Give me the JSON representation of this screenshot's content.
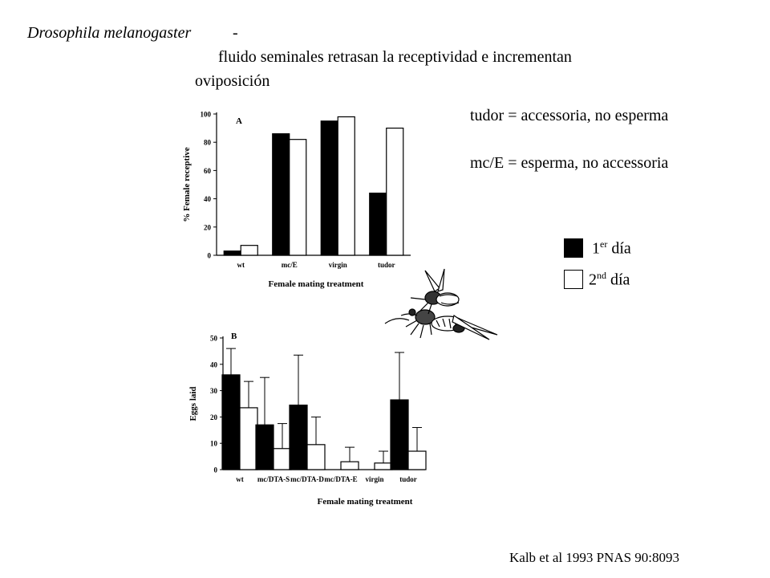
{
  "header": {
    "species": "Drosophila melanogaster",
    "dash": "-",
    "subtitle_line1": "fluido seminales retrasan la receptividad e incrementan",
    "subtitle_line2": "oviposición"
  },
  "notes": {
    "line1": "tudor = accessoria, no esperma",
    "line2": "mc/E = esperma, no accessoria"
  },
  "legend": {
    "day1_num": "1",
    "day1_sup": "er",
    "day1_word": "día",
    "day2_num": "2",
    "day2_sup": "nd",
    "day2_word": "día",
    "colors": {
      "day1": "#000000",
      "day2": "#ffffff"
    }
  },
  "citation": "Kalb et al 1993 PNAS 90:8093",
  "chart_data": [
    {
      "type": "bar",
      "panel_label": "A",
      "categories": [
        "wt",
        "mc/E",
        "virgin",
        "tudor"
      ],
      "series": [
        {
          "values": [
            3,
            86,
            95,
            44
          ]
        },
        {
          "values": [
            7,
            82,
            98,
            90
          ]
        }
      ],
      "ylabel": "% Female receptive",
      "xlabel": "Female mating treatment",
      "ylim": [
        0,
        100
      ],
      "yticks": [
        0,
        20,
        40,
        60,
        80,
        100
      ],
      "grid": false
    },
    {
      "type": "bar",
      "panel_label": "B",
      "categories": [
        "wt",
        "mc/DTA-S",
        "mc/DTA-D",
        "mc/DTA-E",
        "virgin",
        "tudor"
      ],
      "series": [
        {
          "values": [
            36,
            17,
            24.5,
            0,
            0,
            26.5
          ],
          "errors": [
            10,
            18,
            19,
            0,
            0,
            18
          ]
        },
        {
          "values": [
            23.5,
            8,
            9.5,
            3,
            2.5,
            7
          ],
          "errors": [
            10,
            9.5,
            10.5,
            5.5,
            4.5,
            9
          ]
        }
      ],
      "ylabel": "Eggs laid",
      "xlabel": "Female mating treatment",
      "ylim": [
        0,
        50
      ],
      "yticks": [
        0,
        10,
        20,
        30,
        40,
        50
      ],
      "grid": false
    }
  ],
  "images": {
    "fly": "drosophila-mating-illustration"
  }
}
